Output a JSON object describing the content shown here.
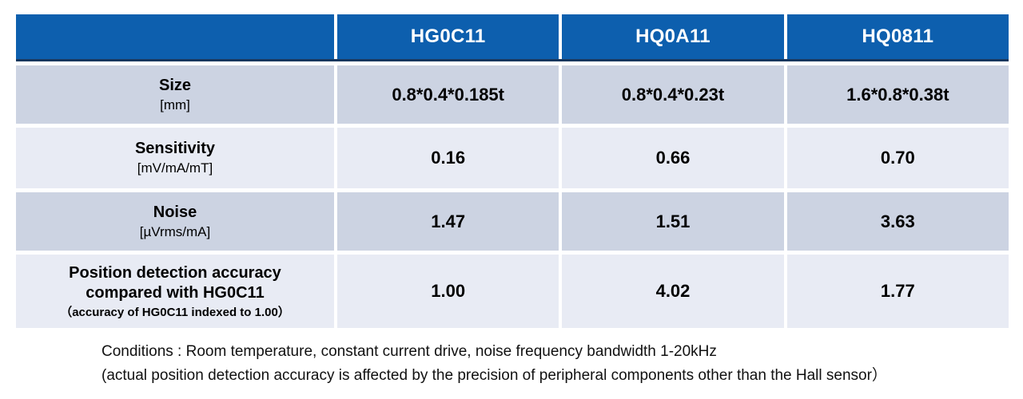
{
  "colors": {
    "header_bg": "#0d5fae",
    "header_text": "#ffffff",
    "header_underline": "#17375e",
    "row_dark": "#ccd3e2",
    "row_light": "#e8ebf4",
    "cell_text": "#000000"
  },
  "chart_data": {
    "type": "table",
    "columns": [
      "HG0C11",
      "HQ0A11",
      "HQ0811"
    ],
    "rows": [
      {
        "label": "Size",
        "unit": "[mm]",
        "values": [
          "0.8*0.4*0.185t",
          "0.8*0.4*0.23t",
          "1.6*0.8*0.38t"
        ]
      },
      {
        "label": "Sensitivity",
        "unit": "[mV/mA/mT]",
        "values": [
          "0.16",
          "0.66",
          "0.70"
        ]
      },
      {
        "label": "Noise",
        "unit": "[µVrms/mA]",
        "values": [
          "1.47",
          "1.51",
          "3.63"
        ]
      },
      {
        "label": "Position detection accuracy compared with HG0C11",
        "sublabel": "（accuracy of HG0C11 indexed to 1.00）",
        "values": [
          "1.00",
          "4.02",
          "1.77"
        ]
      }
    ]
  },
  "footnote": {
    "line1": "Conditions : Room temperature, constant current drive, noise frequency bandwidth 1-20kHz",
    "line2": "(actual position detection accuracy is affected by the precision of peripheral components other than the Hall sensor）"
  }
}
